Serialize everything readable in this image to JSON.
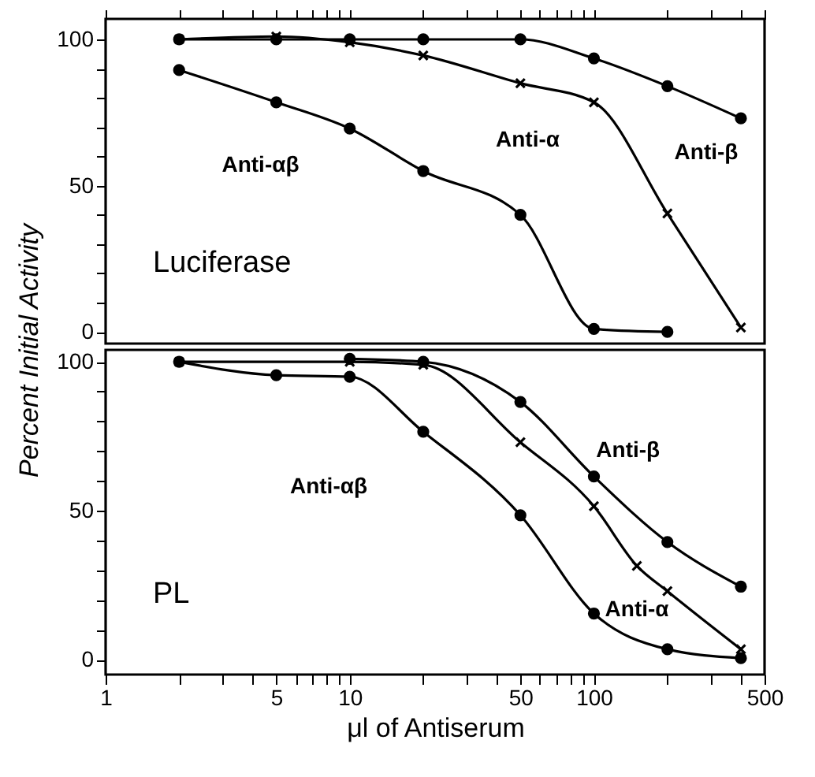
{
  "chart_data": [
    {
      "type": "line",
      "annotations": [
        "Luciferase"
      ],
      "log": "x",
      "tick_labels": "y",
      "line_style": "solid",
      "xlim": [
        1,
        500
      ],
      "xticks": [
        1,
        {
          "value": 2,
          "label": null
        },
        {
          "value": 3,
          "label": null
        },
        {
          "value": 4,
          "label": null
        },
        5,
        {
          "value": 6,
          "label": null
        },
        {
          "value": 7,
          "label": null
        },
        {
          "value": 8,
          "label": null
        },
        {
          "value": 9,
          "label": null
        },
        10,
        {
          "value": 20,
          "label": null
        },
        {
          "value": 30,
          "label": null
        },
        {
          "value": 40,
          "label": null
        },
        50,
        {
          "value": 60,
          "label": null
        },
        {
          "value": 70,
          "label": null
        },
        {
          "value": 80,
          "label": null
        },
        {
          "value": 90,
          "label": null
        },
        100,
        {
          "value": 200,
          "label": null
        },
        {
          "value": 300,
          "label": null
        },
        {
          "value": 400,
          "label": null
        },
        500
      ],
      "ylim": [
        -4,
        107
      ],
      "yticks": [
        0,
        {
          "value": 10,
          "label": null
        },
        {
          "value": 20,
          "label": null
        },
        {
          "value": 30,
          "label": null
        },
        {
          "value": 40,
          "label": null
        },
        50,
        {
          "value": 60,
          "label": null
        },
        {
          "value": 70,
          "label": null
        },
        {
          "value": 80,
          "label": null
        },
        {
          "value": 90,
          "label": null
        },
        100
      ],
      "series": [
        {
          "name": "Anti-β",
          "color": "#000000",
          "marker": "circle",
          "x": [
            2,
            5,
            10,
            20,
            50,
            100,
            200,
            400
          ],
          "values": [
            100,
            100,
            100,
            100,
            100,
            93.5,
            84,
            73
          ]
        },
        {
          "name": "Anti-α",
          "color": "#000000",
          "marker": "cross",
          "x": [
            2,
            5,
            10,
            20,
            50,
            100,
            200,
            400
          ],
          "values": [
            100,
            101,
            99,
            94.5,
            85,
            78.5,
            40.5,
            1.5
          ]
        },
        {
          "name": "Anti-αβ",
          "color": "#000000",
          "marker": "circle",
          "x": [
            2,
            5,
            10,
            20,
            50,
            100,
            200
          ],
          "values": [
            89.5,
            78.5,
            69.5,
            55,
            40,
            1,
            0
          ]
        }
      ]
    },
    {
      "type": "line",
      "annotations": [
        "PL"
      ],
      "log": "x",
      "line_style": "solid",
      "xlabel": "μl of Antiserum",
      "ylabel": "Percent Initial Activity",
      "xlim": [
        1,
        500
      ],
      "xticks": [
        1,
        {
          "value": 2,
          "label": null
        },
        {
          "value": 3,
          "label": null
        },
        {
          "value": 4,
          "label": null
        },
        5,
        {
          "value": 6,
          "label": null
        },
        {
          "value": 7,
          "label": null
        },
        {
          "value": 8,
          "label": null
        },
        {
          "value": 9,
          "label": null
        },
        10,
        {
          "value": 20,
          "label": null
        },
        {
          "value": 30,
          "label": null
        },
        {
          "value": 40,
          "label": null
        },
        50,
        {
          "value": 60,
          "label": null
        },
        {
          "value": 70,
          "label": null
        },
        {
          "value": 80,
          "label": null
        },
        {
          "value": 90,
          "label": null
        },
        100,
        {
          "value": 200,
          "label": null
        },
        {
          "value": 300,
          "label": null
        },
        {
          "value": 400,
          "label": null
        },
        500
      ],
      "ylim": [
        -5,
        104
      ],
      "yticks": [
        0,
        {
          "value": 10,
          "label": null
        },
        {
          "value": 20,
          "label": null
        },
        {
          "value": 30,
          "label": null
        },
        {
          "value": 40,
          "label": null
        },
        50,
        {
          "value": 60,
          "label": null
        },
        {
          "value": 70,
          "label": null
        },
        {
          "value": 80,
          "label": null
        },
        {
          "value": 90,
          "label": null
        },
        100
      ],
      "series": [
        {
          "name": "Anti-β",
          "color": "#000000",
          "marker": "circle",
          "x": [
            10,
            20,
            50,
            100,
            200,
            400
          ],
          "values": [
            101,
            100,
            86.5,
            61.5,
            39.5,
            24.5
          ]
        },
        {
          "name": "Anti-α",
          "color": "#000000",
          "marker": "cross",
          "x": [
            2,
            10,
            20,
            50,
            100,
            150,
            200,
            400
          ],
          "values": [
            100,
            100,
            99,
            73,
            51.5,
            31.5,
            23,
            3.5
          ]
        },
        {
          "name": "Anti-αβ",
          "color": "#000000",
          "marker": "circle",
          "x": [
            2,
            5,
            10,
            20,
            50,
            100,
            200,
            400
          ],
          "values": [
            100,
            95.5,
            95,
            76.5,
            48.5,
            15.5,
            3.5,
            0.5
          ]
        }
      ]
    }
  ]
}
